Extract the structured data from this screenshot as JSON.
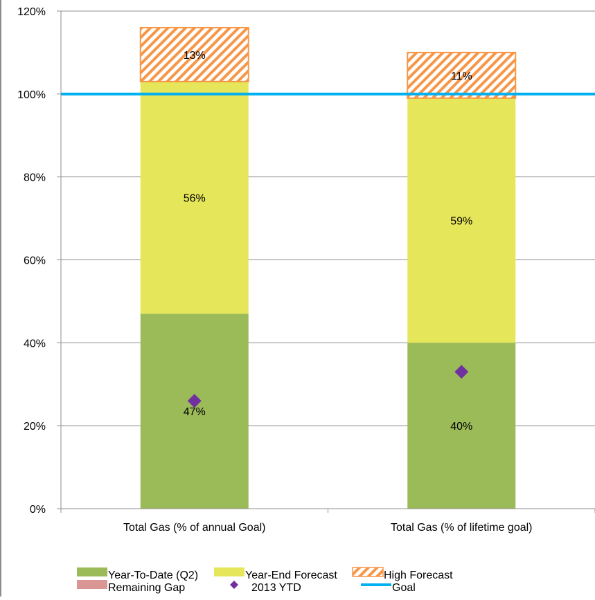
{
  "chart_data": {
    "type": "bar",
    "stacked": true,
    "categories": [
      "Total Gas (% of annual Goal)",
      "Total Gas (% of lifetime goal)"
    ],
    "series": [
      {
        "name": "Year-To-Date  (Q2)",
        "kind": "bar",
        "values": [
          47,
          40
        ],
        "labels": [
          "47%",
          "40%"
        ],
        "color": "#9bbb59"
      },
      {
        "name": "Year-End Forecast",
        "kind": "bar",
        "values": [
          56,
          59
        ],
        "labels": [
          "56%",
          "59%"
        ],
        "color": "#e6e65a"
      },
      {
        "name": "High Forecast",
        "kind": "bar-hatched",
        "values": [
          13,
          11
        ],
        "labels": [
          "13%",
          "11%"
        ],
        "color": "#f79646"
      },
      {
        "name": "Remaining Gap",
        "kind": "bar",
        "values": [
          0,
          0
        ],
        "color": "#d99694"
      },
      {
        "name": "2013 YTD",
        "kind": "marker",
        "values": [
          26,
          33
        ],
        "color": "#7030a0"
      },
      {
        "name": "Goal",
        "kind": "line",
        "values": [
          100,
          100
        ],
        "color": "#00b0f0"
      }
    ],
    "ylim": [
      0,
      120
    ],
    "yticks": [
      "0%",
      "20%",
      "40%",
      "60%",
      "80%",
      "100%",
      "120%"
    ],
    "ytick_values": [
      0,
      20,
      40,
      60,
      80,
      100,
      120
    ],
    "grid": true,
    "legend_position": "bottom",
    "title": "",
    "xlabel": "",
    "ylabel": ""
  }
}
